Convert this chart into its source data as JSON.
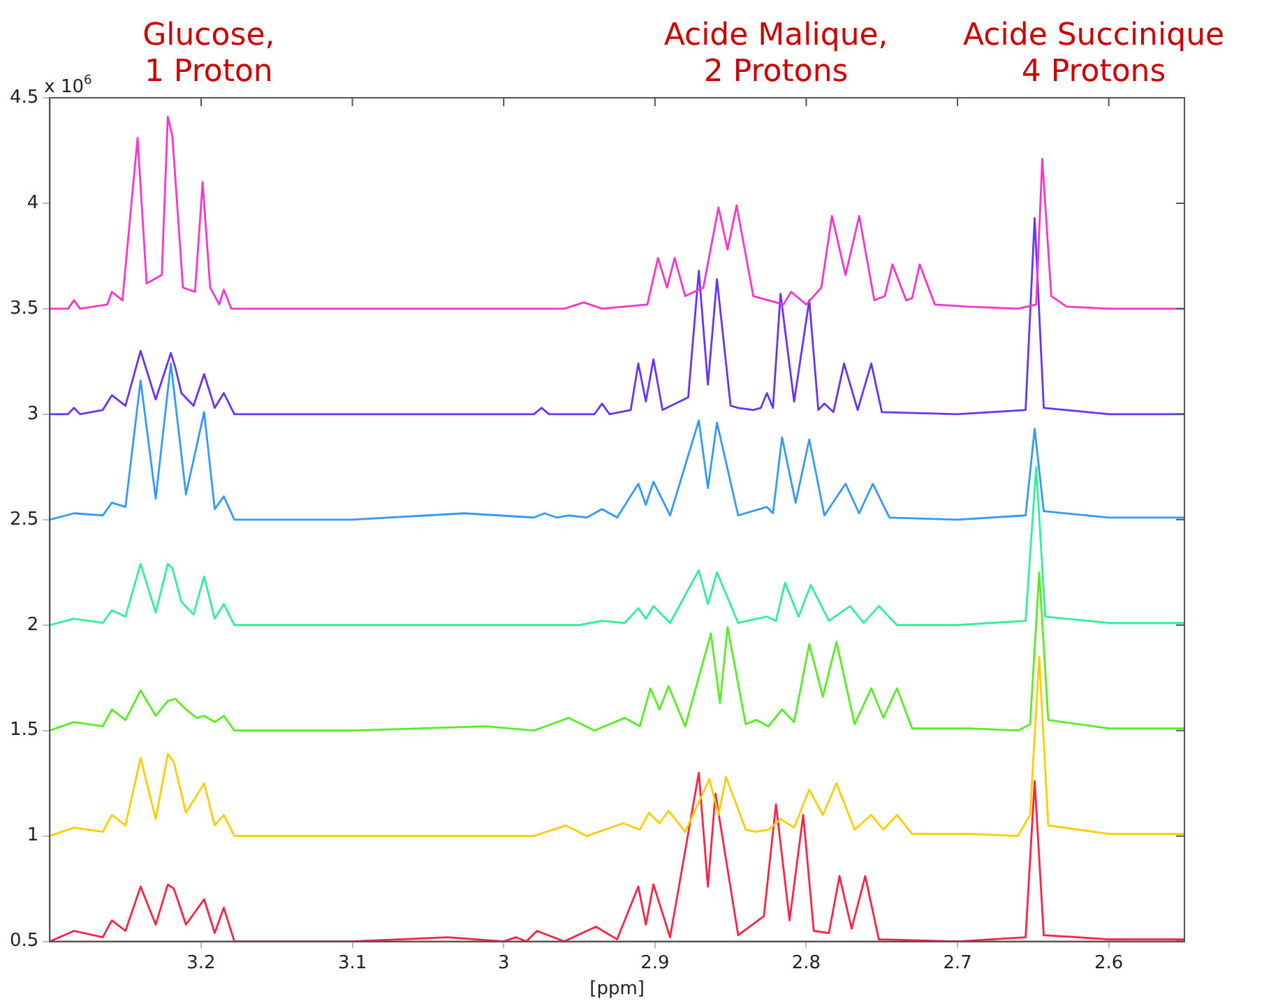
{
  "chart_data": {
    "type": "line",
    "xlabel": "[ppm]",
    "ylabel": "x 10$^{6}$",
    "xlim": [
      3.3,
      2.55
    ],
    "xticks": [
      3.2,
      3.1,
      3,
      2.9,
      2.8,
      2.7,
      2.6
    ],
    "ylim": [
      0.5,
      4.5
    ],
    "yticks": [
      0.5,
      1,
      1.5,
      2,
      2.5,
      3,
      3.5,
      4,
      4.5
    ],
    "grid": false,
    "legend": false,
    "marker": "none",
    "line_style": "solid",
    "annotations": [
      "Glucose,\n1 Proton",
      "Acide Malique,\n2 Protons",
      "Acide Succinique\n4 Protons"
    ],
    "series": [
      {
        "color": "#ff33cc",
        "x": [
          3.3,
          3.288,
          3.284,
          3.28,
          3.262,
          3.259,
          3.252,
          3.242,
          3.236,
          3.226,
          3.222,
          3.219,
          3.212,
          3.204,
          3.199,
          3.194,
          3.188,
          3.185,
          3.18,
          3.1,
          2.96,
          2.947,
          2.935,
          2.905,
          2.898,
          2.892,
          2.887,
          2.88,
          2.868,
          2.858,
          2.852,
          2.846,
          2.835,
          2.815,
          2.81,
          2.8,
          2.79,
          2.783,
          2.774,
          2.765,
          2.755,
          2.748,
          2.743,
          2.734,
          2.73,
          2.725,
          2.715,
          2.694,
          2.66,
          2.648,
          2.644,
          2.638,
          2.628,
          2.6,
          2.55
        ],
        "values": [
          3.5,
          3.5,
          3.54,
          3.5,
          3.52,
          3.58,
          3.54,
          4.31,
          3.62,
          3.66,
          4.41,
          4.32,
          3.6,
          3.58,
          4.1,
          3.6,
          3.52,
          3.59,
          3.5,
          3.5,
          3.5,
          3.53,
          3.5,
          3.52,
          3.74,
          3.6,
          3.74,
          3.56,
          3.6,
          3.98,
          3.78,
          3.99,
          3.56,
          3.52,
          3.58,
          3.52,
          3.6,
          3.94,
          3.66,
          3.94,
          3.54,
          3.56,
          3.71,
          3.54,
          3.55,
          3.71,
          3.52,
          3.51,
          3.5,
          3.52,
          4.21,
          3.56,
          3.51,
          3.5,
          3.5
        ]
      },
      {
        "color": "#6633ff",
        "x": [
          3.3,
          3.288,
          3.284,
          3.28,
          3.265,
          3.259,
          3.25,
          3.24,
          3.23,
          3.22,
          3.217,
          3.213,
          3.205,
          3.198,
          3.191,
          3.185,
          3.178,
          3.1,
          2.98,
          2.975,
          2.97,
          2.94,
          2.935,
          2.93,
          2.916,
          2.911,
          2.906,
          2.901,
          2.895,
          2.878,
          2.871,
          2.865,
          2.859,
          2.85,
          2.845,
          2.835,
          2.83,
          2.826,
          2.822,
          2.817,
          2.808,
          2.798,
          2.792,
          2.788,
          2.782,
          2.775,
          2.766,
          2.757,
          2.75,
          2.7,
          2.655,
          2.649,
          2.643,
          2.6,
          2.55
        ],
        "values": [
          3.0,
          3.0,
          3.03,
          3.0,
          3.02,
          3.09,
          3.04,
          3.3,
          3.07,
          3.29,
          3.22,
          3.1,
          3.04,
          3.19,
          3.03,
          3.1,
          3.0,
          3.0,
          3.0,
          3.03,
          3.0,
          3.0,
          3.05,
          3.0,
          3.02,
          3.24,
          3.06,
          3.26,
          3.02,
          3.08,
          3.68,
          3.14,
          3.64,
          3.04,
          3.03,
          3.02,
          3.03,
          3.1,
          3.03,
          3.57,
          3.06,
          3.54,
          3.02,
          3.05,
          3.01,
          3.24,
          3.02,
          3.24,
          3.01,
          3.0,
          3.02,
          3.93,
          3.03,
          3.0,
          3.0
        ]
      },
      {
        "color": "#3399ff",
        "x": [
          3.3,
          3.284,
          3.265,
          3.259,
          3.25,
          3.24,
          3.23,
          3.22,
          3.21,
          3.198,
          3.191,
          3.185,
          3.178,
          3.1,
          3.026,
          2.98,
          2.973,
          2.965,
          2.957,
          2.945,
          2.935,
          2.925,
          2.911,
          2.906,
          2.901,
          2.89,
          2.871,
          2.865,
          2.859,
          2.845,
          2.826,
          2.822,
          2.816,
          2.807,
          2.798,
          2.788,
          2.774,
          2.765,
          2.756,
          2.745,
          2.7,
          2.655,
          2.649,
          2.643,
          2.6,
          2.55
        ],
        "values": [
          2.5,
          2.53,
          2.52,
          2.58,
          2.56,
          3.16,
          2.6,
          3.24,
          2.62,
          3.01,
          2.55,
          2.61,
          2.5,
          2.5,
          2.53,
          2.51,
          2.53,
          2.51,
          2.52,
          2.51,
          2.55,
          2.51,
          2.67,
          2.57,
          2.68,
          2.52,
          2.97,
          2.65,
          2.96,
          2.52,
          2.56,
          2.53,
          2.89,
          2.58,
          2.88,
          2.52,
          2.67,
          2.53,
          2.67,
          2.51,
          2.5,
          2.52,
          2.93,
          2.54,
          2.51,
          2.51
        ]
      },
      {
        "color": "#33ee99",
        "x": [
          3.3,
          3.284,
          3.265,
          3.259,
          3.25,
          3.24,
          3.23,
          3.222,
          3.219,
          3.213,
          3.205,
          3.198,
          3.191,
          3.185,
          3.178,
          3.1,
          2.95,
          2.935,
          2.92,
          2.911,
          2.906,
          2.901,
          2.89,
          2.871,
          2.865,
          2.859,
          2.845,
          2.826,
          2.82,
          2.814,
          2.805,
          2.797,
          2.785,
          2.771,
          2.762,
          2.752,
          2.74,
          2.7,
          2.655,
          2.648,
          2.642,
          2.6,
          2.55
        ],
        "values": [
          2.0,
          2.03,
          2.01,
          2.07,
          2.04,
          2.29,
          2.06,
          2.29,
          2.27,
          2.11,
          2.05,
          2.23,
          2.03,
          2.1,
          2.0,
          2.0,
          2.0,
          2.02,
          2.01,
          2.08,
          2.03,
          2.09,
          2.01,
          2.26,
          2.1,
          2.25,
          2.01,
          2.04,
          2.02,
          2.2,
          2.04,
          2.19,
          2.02,
          2.09,
          2.01,
          2.09,
          2.0,
          2.0,
          2.02,
          2.75,
          2.04,
          2.01,
          2.01
        ]
      },
      {
        "color": "#55ee22",
        "x": [
          3.3,
          3.284,
          3.265,
          3.259,
          3.25,
          3.24,
          3.23,
          3.222,
          3.217,
          3.21,
          3.203,
          3.198,
          3.191,
          3.185,
          3.178,
          3.1,
          3.012,
          2.98,
          2.957,
          2.94,
          2.92,
          2.91,
          2.903,
          2.897,
          2.891,
          2.88,
          2.863,
          2.857,
          2.852,
          2.84,
          2.833,
          2.825,
          2.816,
          2.808,
          2.798,
          2.789,
          2.78,
          2.768,
          2.757,
          2.749,
          2.74,
          2.73,
          2.692,
          2.66,
          2.652,
          2.646,
          2.64,
          2.6,
          2.55
        ],
        "values": [
          1.5,
          1.54,
          1.52,
          1.6,
          1.55,
          1.69,
          1.57,
          1.64,
          1.65,
          1.6,
          1.56,
          1.57,
          1.54,
          1.57,
          1.5,
          1.5,
          1.52,
          1.5,
          1.56,
          1.5,
          1.56,
          1.52,
          1.7,
          1.6,
          1.71,
          1.52,
          1.96,
          1.63,
          1.99,
          1.53,
          1.55,
          1.52,
          1.6,
          1.54,
          1.91,
          1.66,
          1.92,
          1.53,
          1.7,
          1.56,
          1.7,
          1.51,
          1.51,
          1.5,
          1.53,
          2.25,
          1.55,
          1.51,
          1.51
        ]
      },
      {
        "color": "#ffcc00",
        "x": [
          3.3,
          3.284,
          3.265,
          3.259,
          3.25,
          3.24,
          3.23,
          3.222,
          3.218,
          3.21,
          3.198,
          3.191,
          3.185,
          3.178,
          3.1,
          2.98,
          2.959,
          2.945,
          2.921,
          2.91,
          2.904,
          2.897,
          2.891,
          2.88,
          2.864,
          2.858,
          2.853,
          2.84,
          2.833,
          2.825,
          2.817,
          2.808,
          2.798,
          2.789,
          2.78,
          2.768,
          2.757,
          2.749,
          2.74,
          2.73,
          2.692,
          2.66,
          2.652,
          2.646,
          2.64,
          2.6,
          2.55
        ],
        "values": [
          1.0,
          1.04,
          1.02,
          1.1,
          1.05,
          1.37,
          1.08,
          1.39,
          1.35,
          1.11,
          1.25,
          1.05,
          1.1,
          1.0,
          1.0,
          1.0,
          1.05,
          1.0,
          1.06,
          1.03,
          1.11,
          1.06,
          1.12,
          1.02,
          1.27,
          1.1,
          1.28,
          1.03,
          1.02,
          1.03,
          1.08,
          1.04,
          1.22,
          1.1,
          1.25,
          1.03,
          1.1,
          1.03,
          1.1,
          1.01,
          1.01,
          1.0,
          1.1,
          1.85,
          1.05,
          1.01,
          1.01
        ]
      },
      {
        "color": "#ff2244",
        "x": [
          3.3,
          3.284,
          3.265,
          3.259,
          3.25,
          3.24,
          3.23,
          3.222,
          3.218,
          3.21,
          3.198,
          3.191,
          3.185,
          3.178,
          3.1,
          3.037,
          3.0,
          2.992,
          2.985,
          2.978,
          2.96,
          2.939,
          2.925,
          2.911,
          2.906,
          2.901,
          2.89,
          2.871,
          2.865,
          2.86,
          2.845,
          2.828,
          2.82,
          2.811,
          2.802,
          2.795,
          2.785,
          2.778,
          2.77,
          2.761,
          2.752,
          2.7,
          2.655,
          2.649,
          2.643,
          2.6,
          2.55
        ],
        "values": [
          0.5,
          0.55,
          0.52,
          0.6,
          0.55,
          0.76,
          0.58,
          0.77,
          0.75,
          0.58,
          0.7,
          0.54,
          0.66,
          0.5,
          0.5,
          0.52,
          0.5,
          0.52,
          0.5,
          0.55,
          0.5,
          0.57,
          0.51,
          0.76,
          0.58,
          0.77,
          0.52,
          1.3,
          0.76,
          1.2,
          0.53,
          0.62,
          1.15,
          0.6,
          1.1,
          0.55,
          0.54,
          0.81,
          0.56,
          0.81,
          0.51,
          0.5,
          0.52,
          1.26,
          0.53,
          0.51,
          0.51
        ]
      }
    ]
  }
}
